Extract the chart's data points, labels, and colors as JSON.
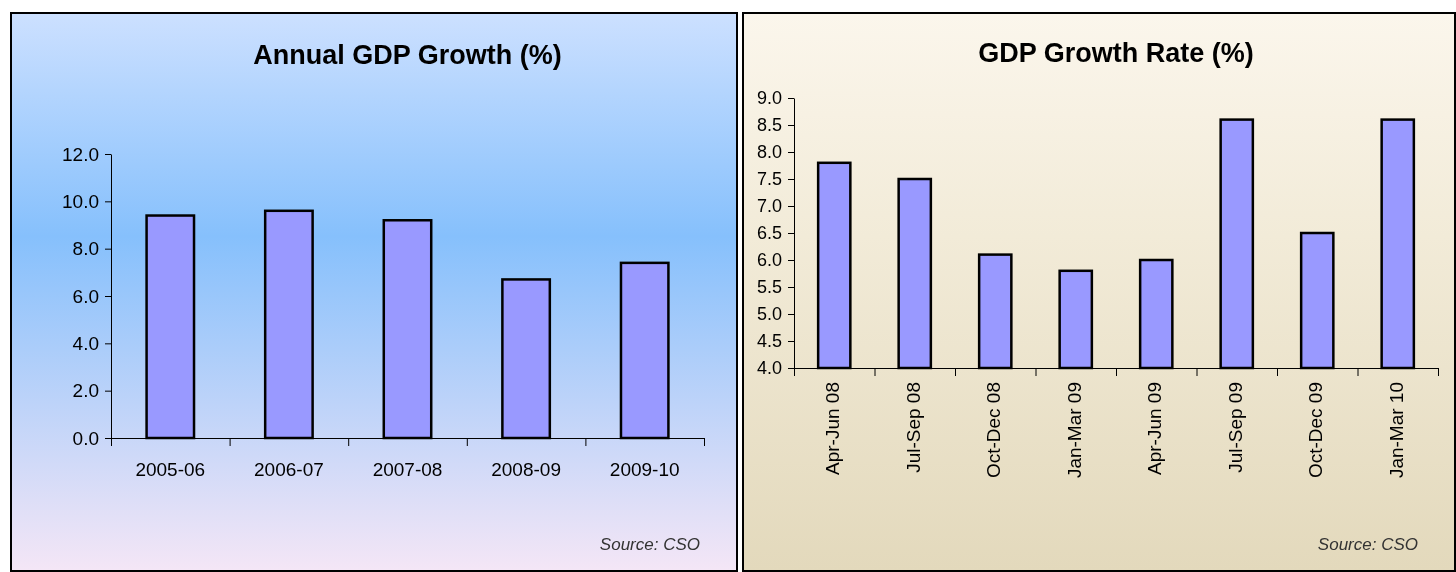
{
  "chart_data": [
    {
      "type": "bar",
      "title": "Annual GDP Growth (%)",
      "categories": [
        "2005-06",
        "2006-07",
        "2007-08",
        "2008-09",
        "2009-10"
      ],
      "values": [
        9.4,
        9.6,
        9.2,
        6.7,
        7.4
      ],
      "color": "#9999ff",
      "ylim": [
        0,
        12
      ],
      "yticks": [
        {
          "value": 0,
          "label": "0.0"
        },
        {
          "value": 2,
          "label": "2.0"
        },
        {
          "value": 4,
          "label": "4.0"
        },
        {
          "value": 6,
          "label": "6.0"
        },
        {
          "value": 8,
          "label": "8.0"
        },
        {
          "value": 10,
          "label": "10.0"
        },
        {
          "value": 12,
          "label": "12.0"
        }
      ],
      "grid": false,
      "annotations": [
        "Source:  CSO"
      ]
    },
    {
      "type": "bar",
      "title": "GDP Growth Rate (%)",
      "categories": [
        "Apr-Jun 08",
        "Jul-Sep 08",
        "Oct-Dec 08",
        "Jan-Mar 09",
        "Apr-Jun 09",
        "Jul-Sep 09",
        "Oct-Dec 09",
        "Jan-Mar 10"
      ],
      "values": [
        7.8,
        7.5,
        6.1,
        5.8,
        6.0,
        8.6,
        6.5,
        8.6
      ],
      "color": "#9999ff",
      "ylim": [
        4,
        9
      ],
      "yticks": [
        {
          "value": 4,
          "label": "4.0"
        },
        {
          "value": 4.5,
          "label": "4.5"
        },
        {
          "value": 5,
          "label": "5.0"
        },
        {
          "value": 5.5,
          "label": "5.5"
        },
        {
          "value": 6,
          "label": "6.0"
        },
        {
          "value": 6.5,
          "label": "6.5"
        },
        {
          "value": 7,
          "label": "7.0"
        },
        {
          "value": 7.5,
          "label": "7.5"
        },
        {
          "value": 8,
          "label": "8.0"
        },
        {
          "value": 8.5,
          "label": "8.5"
        },
        {
          "value": 9,
          "label": "9.0"
        }
      ],
      "grid": false,
      "annotations": [
        "Source:  CSO"
      ]
    }
  ]
}
